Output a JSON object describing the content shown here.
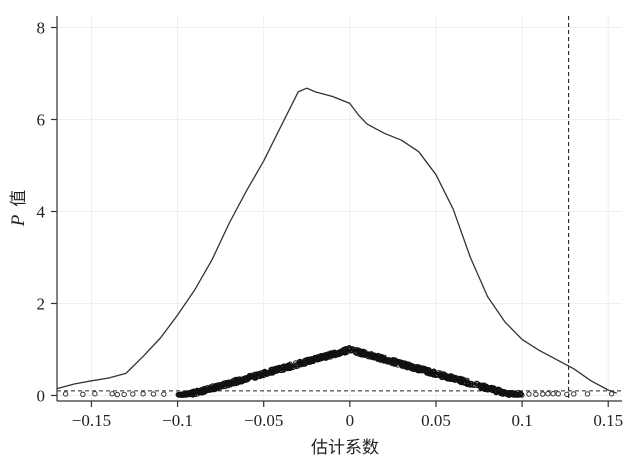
{
  "chart_data": {
    "type": "line",
    "title": "",
    "xlabel": "估计系数",
    "ylabel_italic": "P",
    "ylabel_rest": "值",
    "xlim": [
      -0.17,
      0.158
    ],
    "ylim": [
      -0.12,
      8.25
    ],
    "grid": true,
    "x_ticks": [
      {
        "value": -0.15,
        "label": "−0.15"
      },
      {
        "value": -0.1,
        "label": "−0.1"
      },
      {
        "value": -0.05,
        "label": "−0.05"
      },
      {
        "value": 0,
        "label": "0"
      },
      {
        "value": 0.05,
        "label": "0.05"
      },
      {
        "value": 0.1,
        "label": "0.1"
      },
      {
        "value": 0.15,
        "label": "0.15"
      }
    ],
    "y_ticks": [
      {
        "value": 0,
        "label": "0"
      },
      {
        "value": 2,
        "label": "2"
      },
      {
        "value": 4,
        "label": "4"
      },
      {
        "value": 6,
        "label": "6"
      },
      {
        "value": 8,
        "label": "8"
      }
    ],
    "reference_lines": {
      "vertical_x": 0.127,
      "horizontal_y": 0.1
    },
    "series": [
      {
        "kind": "density-line",
        "x": [
          -0.17,
          -0.16,
          -0.15,
          -0.14,
          -0.13,
          -0.12,
          -0.11,
          -0.1,
          -0.09,
          -0.08,
          -0.07,
          -0.06,
          -0.05,
          -0.04,
          -0.03,
          -0.025,
          -0.02,
          -0.01,
          0,
          0.005,
          0.01,
          0.02,
          0.03,
          0.04,
          0.05,
          0.06,
          0.07,
          0.08,
          0.09,
          0.1,
          0.11,
          0.12,
          0.13,
          0.14,
          0.15,
          0.155
        ],
        "y": [
          0.15,
          0.25,
          0.32,
          0.38,
          0.48,
          0.85,
          1.25,
          1.75,
          2.3,
          2.95,
          3.75,
          4.45,
          5.1,
          5.85,
          6.6,
          6.68,
          6.6,
          6.5,
          6.35,
          6.1,
          5.9,
          5.7,
          5.55,
          5.3,
          4.8,
          4.05,
          3.0,
          2.15,
          1.6,
          1.22,
          0.98,
          0.78,
          0.58,
          0.32,
          0.12,
          0.05
        ]
      }
    ],
    "scatter_band": {
      "kind": "p-value-points",
      "peak_x": 0,
      "peak_y": 1.0,
      "x_range": [
        -0.165,
        0.153
      ]
    }
  }
}
